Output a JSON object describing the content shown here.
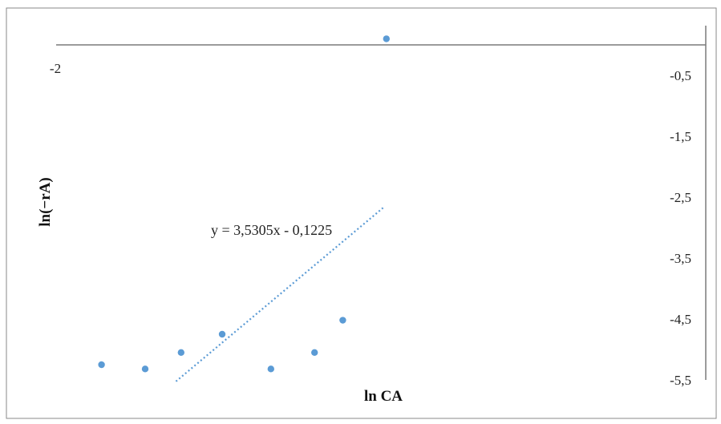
{
  "chart_data": {
    "type": "scatter",
    "title": "",
    "xlabel": "ln CA",
    "ylabel": "ln(−rA)",
    "x_tick_labels": [
      "-2"
    ],
    "y_ticks": [
      -0.5,
      -1.5,
      -2.5,
      -3.5,
      -4.5,
      -5.5
    ],
    "y_tick_labels": [
      "-0,5",
      "-1,5",
      "-2,5",
      "-3,5",
      "-4,5",
      "-5,5"
    ],
    "xlim": [
      -2.5,
      0.0
    ],
    "ylim": [
      -5.5,
      0.0
    ],
    "series": [
      {
        "x": [
          -1.82,
          -1.65,
          -1.51,
          -1.35,
          -1.16,
          -0.99,
          -0.88,
          -0.71
        ],
        "y": [
          -5.25,
          -5.32,
          -5.05,
          -4.75,
          -5.32,
          -5.05,
          -4.52,
          0.1
        ],
        "color": "#5b9bd5"
      }
    ],
    "trendline": {
      "type": "linear",
      "equation": "y = 3,5305x - 0,1225",
      "slope": 3.5305,
      "intercept": -0.1225,
      "x_range": [
        -1.53,
        -0.72
      ],
      "color": "#5b9bd5",
      "style": "dotted"
    },
    "grid": false,
    "legend": "none"
  }
}
